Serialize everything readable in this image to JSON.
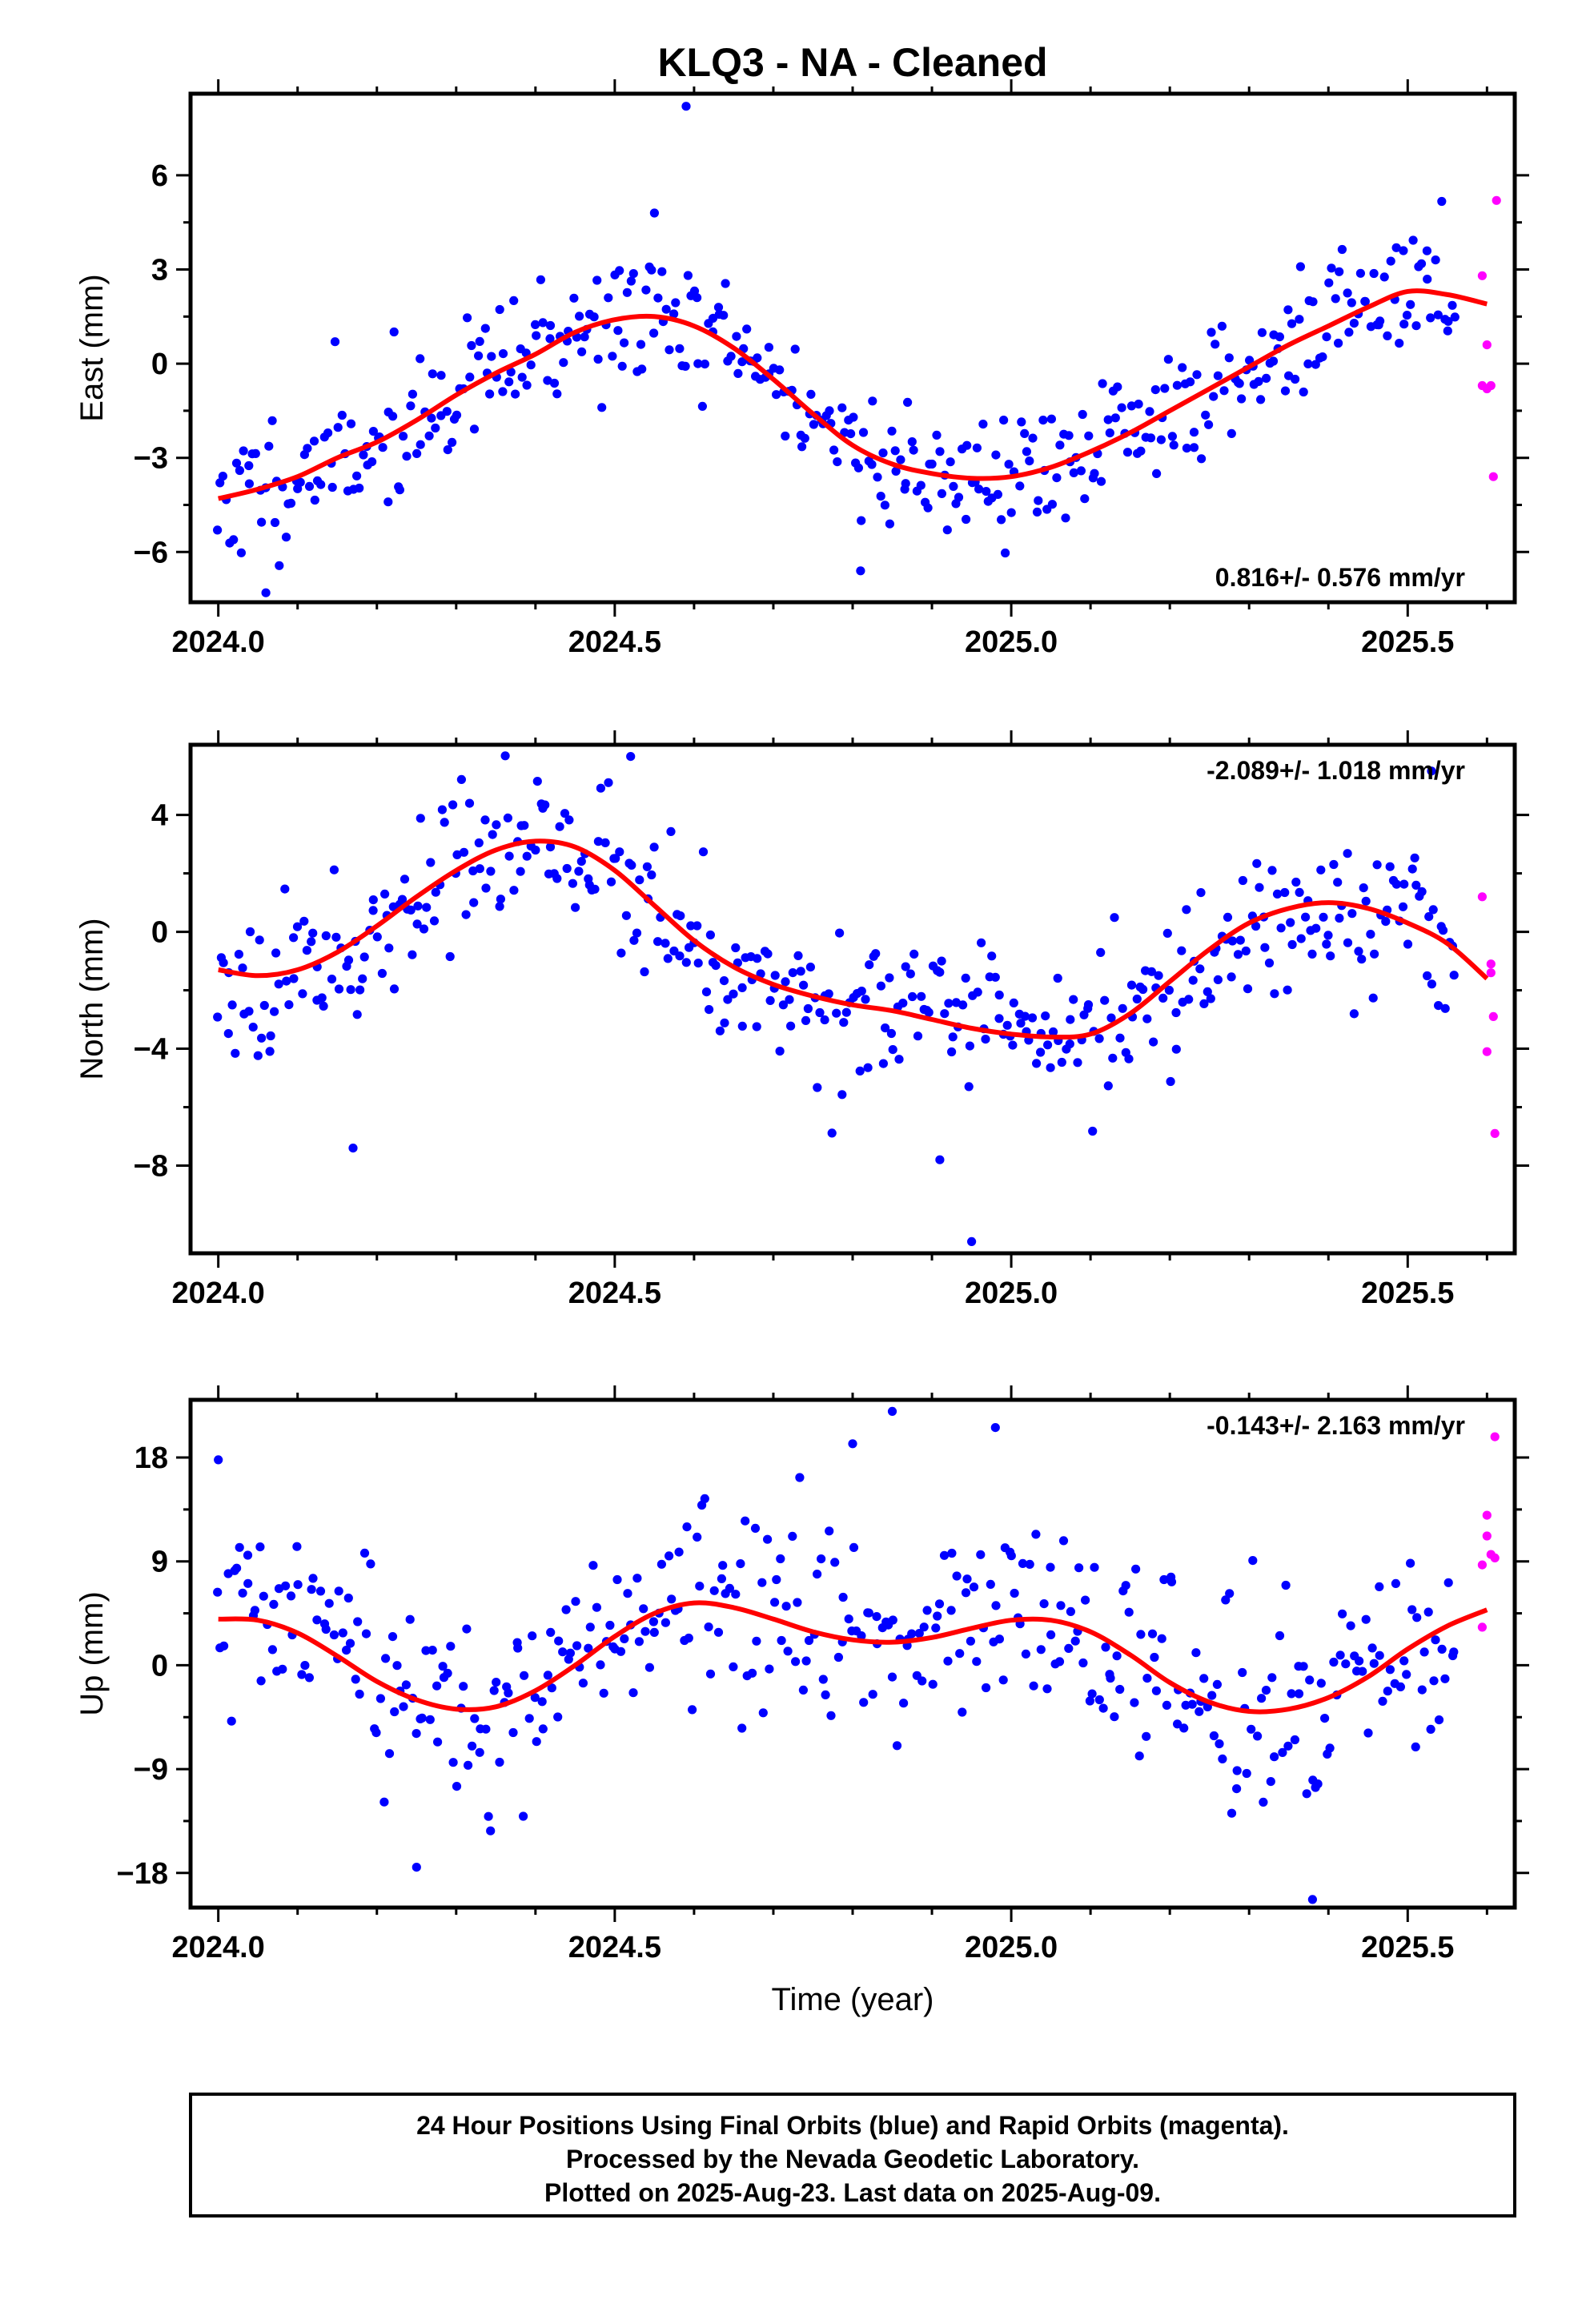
{
  "title": "KLQ3  - NA - Cleaned",
  "xlabel": "Time (year)",
  "colors": {
    "final": "#0000ff",
    "rapid": "#ff00ff",
    "model": "#ff0000"
  },
  "footer": {
    "lines": [
      "24 Hour Positions Using Final Orbits (blue) and Rapid Orbits (magenta).",
      "Processed by the Nevada Geodetic Laboratory.",
      "Plotted on 2025-Aug-23. Last data on 2025-Aug-09."
    ]
  },
  "chart_data": [
    {
      "type": "scatter",
      "component": "east",
      "ylabel": "East (mm)",
      "rate_label": "0.816+/- 0.576 mm/yr",
      "rate_position": "bottom-right",
      "xlim": [
        2023.965,
        2025.635
      ],
      "ylim": [
        -7.6,
        8.6
      ],
      "xticks": [
        2024.0,
        2024.5,
        2025.0,
        2025.5
      ],
      "xtick_labels": [
        "2024.0",
        "2024.5",
        "2025.0",
        "2025.5"
      ],
      "yticks": [
        -6,
        -3,
        0,
        3,
        6
      ],
      "ytick_labels": [
        "−6",
        "−3",
        "0",
        "3",
        "6"
      ],
      "model": {
        "x": [
          2024.0,
          2024.05,
          2024.1,
          2024.15,
          2024.2,
          2024.25,
          2024.3,
          2024.35,
          2024.4,
          2024.45,
          2024.5,
          2024.55,
          2024.6,
          2024.65,
          2024.7,
          2024.75,
          2024.8,
          2024.85,
          2024.9,
          2024.95,
          2025.0,
          2025.05,
          2025.1,
          2025.15,
          2025.2,
          2025.25,
          2025.3,
          2025.35,
          2025.4,
          2025.45,
          2025.5,
          2025.55,
          2025.6
        ],
        "y": [
          -4.3,
          -4.0,
          -3.6,
          -3.0,
          -2.5,
          -1.8,
          -1.0,
          -0.3,
          0.3,
          1.0,
          1.4,
          1.5,
          1.2,
          0.5,
          -0.5,
          -1.6,
          -2.6,
          -3.2,
          -3.5,
          -3.65,
          -3.6,
          -3.3,
          -2.8,
          -2.2,
          -1.5,
          -0.8,
          -0.1,
          0.6,
          1.2,
          1.8,
          2.3,
          2.2,
          1.9
        ]
      },
      "series": [
        {
          "name": "Final Orbits",
          "seed": 11,
          "n": 420,
          "x0": 2024.0,
          "x1": 2025.56,
          "noise": 1.05,
          "outliers": [
            [
              2024.59,
              8.2
            ],
            [
              2024.06,
              -7.3
            ],
            [
              2024.81,
              -6.6
            ],
            [
              2024.55,
              4.8
            ]
          ]
        },
        {
          "name": "Rapid Orbits",
          "points": [
            [
              2025.612,
              5.2
            ],
            [
              2025.594,
              2.8
            ],
            [
              2025.6,
              0.6
            ],
            [
              2025.594,
              -0.7
            ],
            [
              2025.6,
              -0.8
            ],
            [
              2025.605,
              -0.7
            ],
            [
              2025.608,
              -3.6
            ]
          ]
        }
      ]
    },
    {
      "type": "scatter",
      "component": "north",
      "ylabel": "North (mm)",
      "rate_label": "-2.089+/- 1.018 mm/yr",
      "rate_position": "top-right",
      "xlim": [
        2023.965,
        2025.635
      ],
      "ylim": [
        -11.0,
        6.4
      ],
      "xticks": [
        2024.0,
        2024.5,
        2025.0,
        2025.5
      ],
      "xtick_labels": [
        "2024.0",
        "2024.5",
        "2025.0",
        "2025.5"
      ],
      "yticks": [
        -8,
        -4,
        0,
        4
      ],
      "ytick_labels": [
        "−8",
        "−4",
        "0",
        "4"
      ],
      "model": {
        "x": [
          2024.0,
          2024.05,
          2024.1,
          2024.15,
          2024.2,
          2024.25,
          2024.3,
          2024.35,
          2024.4,
          2024.45,
          2024.5,
          2024.55,
          2024.6,
          2024.65,
          2024.7,
          2024.75,
          2024.8,
          2024.85,
          2024.9,
          2024.95,
          2025.0,
          2025.05,
          2025.1,
          2025.15,
          2025.2,
          2025.25,
          2025.3,
          2025.35,
          2025.4,
          2025.45,
          2025.5,
          2025.55,
          2025.6
        ],
        "y": [
          -1.3,
          -1.5,
          -1.3,
          -0.7,
          0.2,
          1.2,
          2.1,
          2.8,
          3.1,
          2.9,
          2.1,
          0.9,
          -0.3,
          -1.2,
          -1.8,
          -2.2,
          -2.5,
          -2.7,
          -3.0,
          -3.3,
          -3.5,
          -3.6,
          -3.5,
          -2.8,
          -1.7,
          -0.6,
          0.3,
          0.8,
          1.0,
          0.8,
          0.3,
          -0.4,
          -1.6
        ]
      },
      "series": [
        {
          "name": "Final Orbits",
          "seed": 23,
          "n": 420,
          "x0": 2024.0,
          "x1": 2025.56,
          "noise": 1.25,
          "outliers": [
            [
              2024.95,
              -10.6
            ],
            [
              2024.52,
              6.0
            ],
            [
              2024.17,
              -7.4
            ],
            [
              2024.91,
              -7.8
            ],
            [
              2025.53,
              5.5
            ]
          ]
        },
        {
          "name": "Rapid Orbits",
          "points": [
            [
              2025.594,
              1.2
            ],
            [
              2025.605,
              -1.1
            ],
            [
              2025.605,
              -1.4
            ],
            [
              2025.608,
              -2.9
            ],
            [
              2025.6,
              -4.1
            ],
            [
              2025.61,
              -6.9
            ]
          ]
        }
      ]
    },
    {
      "type": "scatter",
      "component": "up",
      "ylabel": "Up (mm)",
      "rate_label": "-0.143+/- 2.163 mm/yr",
      "rate_position": "top-right",
      "xlim": [
        2023.965,
        2025.635
      ],
      "ylim": [
        -21.0,
        23.0
      ],
      "xticks": [
        2024.0,
        2024.5,
        2025.0,
        2025.5
      ],
      "xtick_labels": [
        "2024.0",
        "2024.5",
        "2025.0",
        "2025.5"
      ],
      "yticks": [
        -18,
        -9,
        0,
        9,
        18
      ],
      "ytick_labels": [
        "−18",
        "−9",
        "0",
        "9",
        "18"
      ],
      "model": {
        "x": [
          2024.0,
          2024.05,
          2024.1,
          2024.15,
          2024.2,
          2024.25,
          2024.3,
          2024.35,
          2024.4,
          2024.45,
          2024.5,
          2024.55,
          2024.6,
          2024.65,
          2024.7,
          2024.75,
          2024.8,
          2024.85,
          2024.9,
          2024.95,
          2025.0,
          2025.05,
          2025.1,
          2025.15,
          2025.2,
          2025.25,
          2025.3,
          2025.35,
          2025.4,
          2025.45,
          2025.5,
          2025.55,
          2025.6
        ],
        "y": [
          4.0,
          3.9,
          2.8,
          0.8,
          -1.4,
          -3.0,
          -3.8,
          -3.6,
          -2.2,
          0.0,
          2.5,
          4.5,
          5.4,
          5.0,
          4.0,
          2.9,
          2.2,
          2.0,
          2.4,
          3.2,
          3.9,
          3.9,
          2.9,
          0.9,
          -1.5,
          -3.2,
          -4.0,
          -3.8,
          -2.8,
          -1.0,
          1.4,
          3.4,
          4.8
        ]
      },
      "series": [
        {
          "name": "Final Orbits",
          "seed": 37,
          "n": 400,
          "x0": 2024.0,
          "x1": 2025.56,
          "noise": 4.3,
          "outliers": [
            [
              2024.85,
              22.0
            ],
            [
              2024.98,
              20.6
            ],
            [
              2025.38,
              -20.3
            ],
            [
              2024.25,
              -17.5
            ],
            [
              2024.8,
              19.2
            ],
            [
              2024.0,
              17.8
            ]
          ]
        },
        {
          "name": "Rapid Orbits",
          "points": [
            [
              2025.61,
              19.8
            ],
            [
              2025.6,
              13.0
            ],
            [
              2025.6,
              11.2
            ],
            [
              2025.605,
              9.6
            ],
            [
              2025.61,
              9.3
            ],
            [
              2025.594,
              8.7
            ],
            [
              2025.594,
              3.3
            ]
          ]
        }
      ]
    }
  ]
}
